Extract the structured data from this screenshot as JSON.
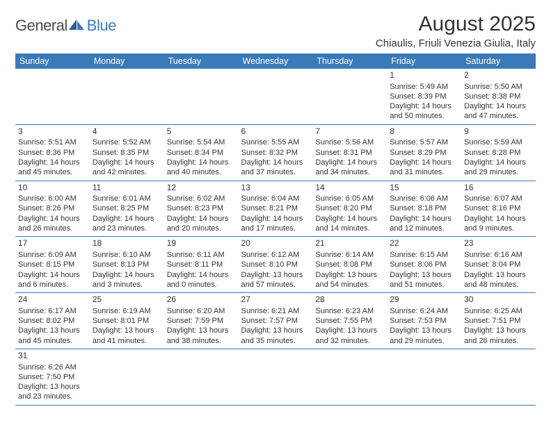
{
  "logo": {
    "general": "General",
    "blue": "Blue"
  },
  "title": "August 2025",
  "location": "Chiaulis, Friuli Venezia Giulia, Italy",
  "colors": {
    "header_bg": "#3a7ab8",
    "header_text": "#ffffff",
    "body_text": "#333333",
    "border": "#3a7ab8",
    "logo_gray": "#4a4a4a",
    "logo_blue": "#3a7ab8"
  },
  "day_headers": [
    "Sunday",
    "Monday",
    "Tuesday",
    "Wednesday",
    "Thursday",
    "Friday",
    "Saturday"
  ],
  "weeks": [
    [
      null,
      null,
      null,
      null,
      null,
      {
        "n": "1",
        "sr": "5:49 AM",
        "ss": "8:39 PM",
        "d1": "Daylight: 14 hours",
        "d2": "and 50 minutes."
      },
      {
        "n": "2",
        "sr": "5:50 AM",
        "ss": "8:38 PM",
        "d1": "Daylight: 14 hours",
        "d2": "and 47 minutes."
      }
    ],
    [
      {
        "n": "3",
        "sr": "5:51 AM",
        "ss": "8:36 PM",
        "d1": "Daylight: 14 hours",
        "d2": "and 45 minutes."
      },
      {
        "n": "4",
        "sr": "5:52 AM",
        "ss": "8:35 PM",
        "d1": "Daylight: 14 hours",
        "d2": "and 42 minutes."
      },
      {
        "n": "5",
        "sr": "5:54 AM",
        "ss": "8:34 PM",
        "d1": "Daylight: 14 hours",
        "d2": "and 40 minutes."
      },
      {
        "n": "6",
        "sr": "5:55 AM",
        "ss": "8:32 PM",
        "d1": "Daylight: 14 hours",
        "d2": "and 37 minutes."
      },
      {
        "n": "7",
        "sr": "5:56 AM",
        "ss": "8:31 PM",
        "d1": "Daylight: 14 hours",
        "d2": "and 34 minutes."
      },
      {
        "n": "8",
        "sr": "5:57 AM",
        "ss": "8:29 PM",
        "d1": "Daylight: 14 hours",
        "d2": "and 31 minutes."
      },
      {
        "n": "9",
        "sr": "5:59 AM",
        "ss": "8:28 PM",
        "d1": "Daylight: 14 hours",
        "d2": "and 29 minutes."
      }
    ],
    [
      {
        "n": "10",
        "sr": "6:00 AM",
        "ss": "8:26 PM",
        "d1": "Daylight: 14 hours",
        "d2": "and 26 minutes."
      },
      {
        "n": "11",
        "sr": "6:01 AM",
        "ss": "8:25 PM",
        "d1": "Daylight: 14 hours",
        "d2": "and 23 minutes."
      },
      {
        "n": "12",
        "sr": "6:02 AM",
        "ss": "8:23 PM",
        "d1": "Daylight: 14 hours",
        "d2": "and 20 minutes."
      },
      {
        "n": "13",
        "sr": "6:04 AM",
        "ss": "8:21 PM",
        "d1": "Daylight: 14 hours",
        "d2": "and 17 minutes."
      },
      {
        "n": "14",
        "sr": "6:05 AM",
        "ss": "8:20 PM",
        "d1": "Daylight: 14 hours",
        "d2": "and 14 minutes."
      },
      {
        "n": "15",
        "sr": "6:06 AM",
        "ss": "8:18 PM",
        "d1": "Daylight: 14 hours",
        "d2": "and 12 minutes."
      },
      {
        "n": "16",
        "sr": "6:07 AM",
        "ss": "8:16 PM",
        "d1": "Daylight: 14 hours",
        "d2": "and 9 minutes."
      }
    ],
    [
      {
        "n": "17",
        "sr": "6:09 AM",
        "ss": "8:15 PM",
        "d1": "Daylight: 14 hours",
        "d2": "and 6 minutes."
      },
      {
        "n": "18",
        "sr": "6:10 AM",
        "ss": "8:13 PM",
        "d1": "Daylight: 14 hours",
        "d2": "and 3 minutes."
      },
      {
        "n": "19",
        "sr": "6:11 AM",
        "ss": "8:11 PM",
        "d1": "Daylight: 14 hours",
        "d2": "and 0 minutes."
      },
      {
        "n": "20",
        "sr": "6:12 AM",
        "ss": "8:10 PM",
        "d1": "Daylight: 13 hours",
        "d2": "and 57 minutes."
      },
      {
        "n": "21",
        "sr": "6:14 AM",
        "ss": "8:08 PM",
        "d1": "Daylight: 13 hours",
        "d2": "and 54 minutes."
      },
      {
        "n": "22",
        "sr": "6:15 AM",
        "ss": "8:06 PM",
        "d1": "Daylight: 13 hours",
        "d2": "and 51 minutes."
      },
      {
        "n": "23",
        "sr": "6:16 AM",
        "ss": "8:04 PM",
        "d1": "Daylight: 13 hours",
        "d2": "and 48 minutes."
      }
    ],
    [
      {
        "n": "24",
        "sr": "6:17 AM",
        "ss": "8:02 PM",
        "d1": "Daylight: 13 hours",
        "d2": "and 45 minutes."
      },
      {
        "n": "25",
        "sr": "6:19 AM",
        "ss": "8:01 PM",
        "d1": "Daylight: 13 hours",
        "d2": "and 41 minutes."
      },
      {
        "n": "26",
        "sr": "6:20 AM",
        "ss": "7:59 PM",
        "d1": "Daylight: 13 hours",
        "d2": "and 38 minutes."
      },
      {
        "n": "27",
        "sr": "6:21 AM",
        "ss": "7:57 PM",
        "d1": "Daylight: 13 hours",
        "d2": "and 35 minutes."
      },
      {
        "n": "28",
        "sr": "6:23 AM",
        "ss": "7:55 PM",
        "d1": "Daylight: 13 hours",
        "d2": "and 32 minutes."
      },
      {
        "n": "29",
        "sr": "6:24 AM",
        "ss": "7:53 PM",
        "d1": "Daylight: 13 hours",
        "d2": "and 29 minutes."
      },
      {
        "n": "30",
        "sr": "6:25 AM",
        "ss": "7:51 PM",
        "d1": "Daylight: 13 hours",
        "d2": "and 26 minutes."
      }
    ],
    [
      {
        "n": "31",
        "sr": "6:26 AM",
        "ss": "7:50 PM",
        "d1": "Daylight: 13 hours",
        "d2": "and 23 minutes."
      },
      null,
      null,
      null,
      null,
      null,
      null
    ]
  ]
}
